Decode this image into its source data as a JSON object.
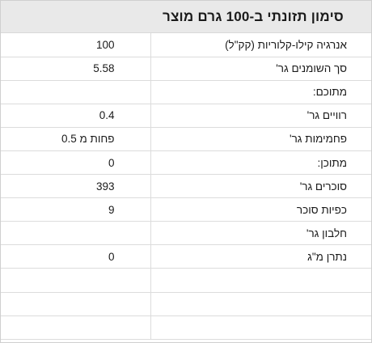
{
  "header": {
    "title": "סימון תזונתי ב-100 גרם מוצר"
  },
  "rows": [
    {
      "label": "אנרגיה קילו-קלוריות (קק\"ל)",
      "value": "100"
    },
    {
      "label": "סך השומנים גר'",
      "value": "5.58"
    },
    {
      "label": "מתוכם:",
      "value": ""
    },
    {
      "label": "רוויים גר'",
      "value": "0.4"
    },
    {
      "label": "פחמימות גר'",
      "value": "פחות מ 0.5"
    },
    {
      "label": "מתוכן:",
      "value": "0"
    },
    {
      "label": "סוכרים גר'",
      "value": "393"
    },
    {
      "label": "כפיות סוכר",
      "value": "9"
    },
    {
      "label": "חלבון גר'",
      "value": ""
    },
    {
      "label": "נתרן מ\"ג",
      "value": "0"
    },
    {
      "label": "",
      "value": ""
    },
    {
      "label": "",
      "value": ""
    },
    {
      "label": "",
      "value": ""
    }
  ]
}
